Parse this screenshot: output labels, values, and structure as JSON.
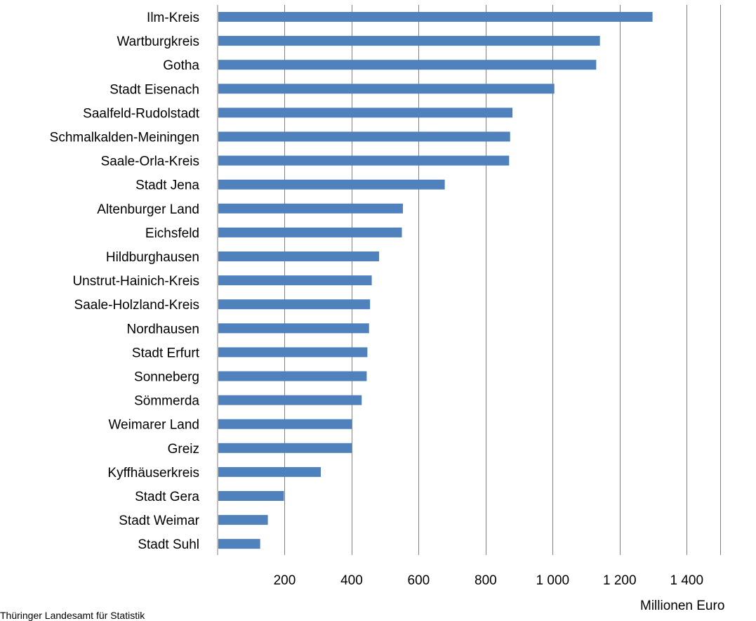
{
  "chart_data": {
    "type": "bar",
    "orientation": "horizontal",
    "categories": [
      "Ilm-Kreis",
      "Wartburgkreis",
      "Gotha",
      "Stadt Eisenach",
      "Saalfeld-Rudolstadt",
      "Schmalkalden-Meiningen",
      "Saale-Orla-Kreis",
      "Stadt Jena",
      "Altenburger Land",
      "Eichsfeld",
      "Hildburghausen",
      "Unstrut-Hainich-Kreis",
      "Saale-Holzland-Kreis",
      "Nordhausen",
      "Stadt Erfurt",
      "Sonneberg",
      "Sömmerda",
      "Weimarer Land",
      "Greiz",
      "Kyffhäuserkreis",
      "Stadt Gera",
      "Stadt Weimar",
      "Stadt Suhl"
    ],
    "values": [
      1298,
      1141,
      1130,
      1005,
      880,
      873,
      870,
      678,
      553,
      550,
      482,
      460,
      455,
      452,
      447,
      445,
      430,
      400,
      400,
      308,
      198,
      150,
      127
    ],
    "xlim": [
      0,
      1500
    ],
    "ticks": [
      200,
      400,
      600,
      800,
      1000,
      1200,
      1400
    ],
    "tick_labels": [
      "200",
      "400",
      "600",
      "800",
      "1 000",
      "1 200",
      "1 400"
    ],
    "xlabel": "Millionen Euro",
    "source": "Thüringer Landesamt für Statistik",
    "grid": "vertical",
    "bar_color": "#4f81bd",
    "grid_color": "#808080"
  }
}
